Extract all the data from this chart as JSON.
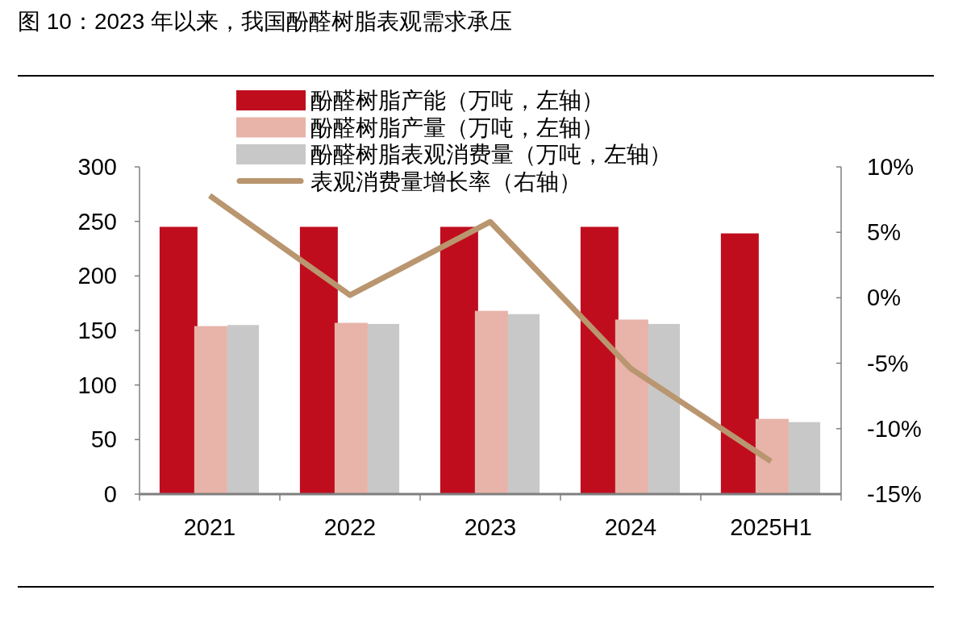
{
  "chart_data": {
    "type": "bar",
    "title": "图 10：2023 年以来，我国酚醛树脂表观需求承压",
    "categories": [
      "2021",
      "2022",
      "2023",
      "2024",
      "2025H1"
    ],
    "series": [
      {
        "name": "酚醛树脂产能（万吨，左轴）",
        "color": "#c00d1e",
        "values": [
          245,
          245,
          245,
          245,
          239
        ]
      },
      {
        "name": "酚醛树脂产量（万吨，左轴）",
        "color": "#e8b3a8",
        "values": [
          154,
          157,
          168,
          160,
          69
        ]
      },
      {
        "name": "酚醛树脂表观消费量（万吨，左轴）",
        "color": "#c8c8c8",
        "values": [
          155,
          156,
          165,
          156,
          66
        ]
      },
      {
        "name": "表观消费量增长率（右轴）",
        "type": "line",
        "axis": "y2",
        "color": "#b9966f",
        "values": [
          7.8,
          0.2,
          5.8,
          -5.4,
          -12.5
        ]
      }
    ],
    "ylim": [
      0,
      300
    ],
    "yticks": [
      0,
      50,
      100,
      150,
      200,
      250,
      300
    ],
    "y2lim": [
      -15,
      10
    ],
    "y2ticks": [
      {
        "value": -15,
        "label": "-15%"
      },
      {
        "value": -10,
        "label": "-10%"
      },
      {
        "value": -5,
        "label": "-5%"
      },
      {
        "value": 0,
        "label": "0%"
      },
      {
        "value": 5,
        "label": "5%"
      },
      {
        "value": 10,
        "label": "10%"
      }
    ],
    "legend": "top"
  }
}
